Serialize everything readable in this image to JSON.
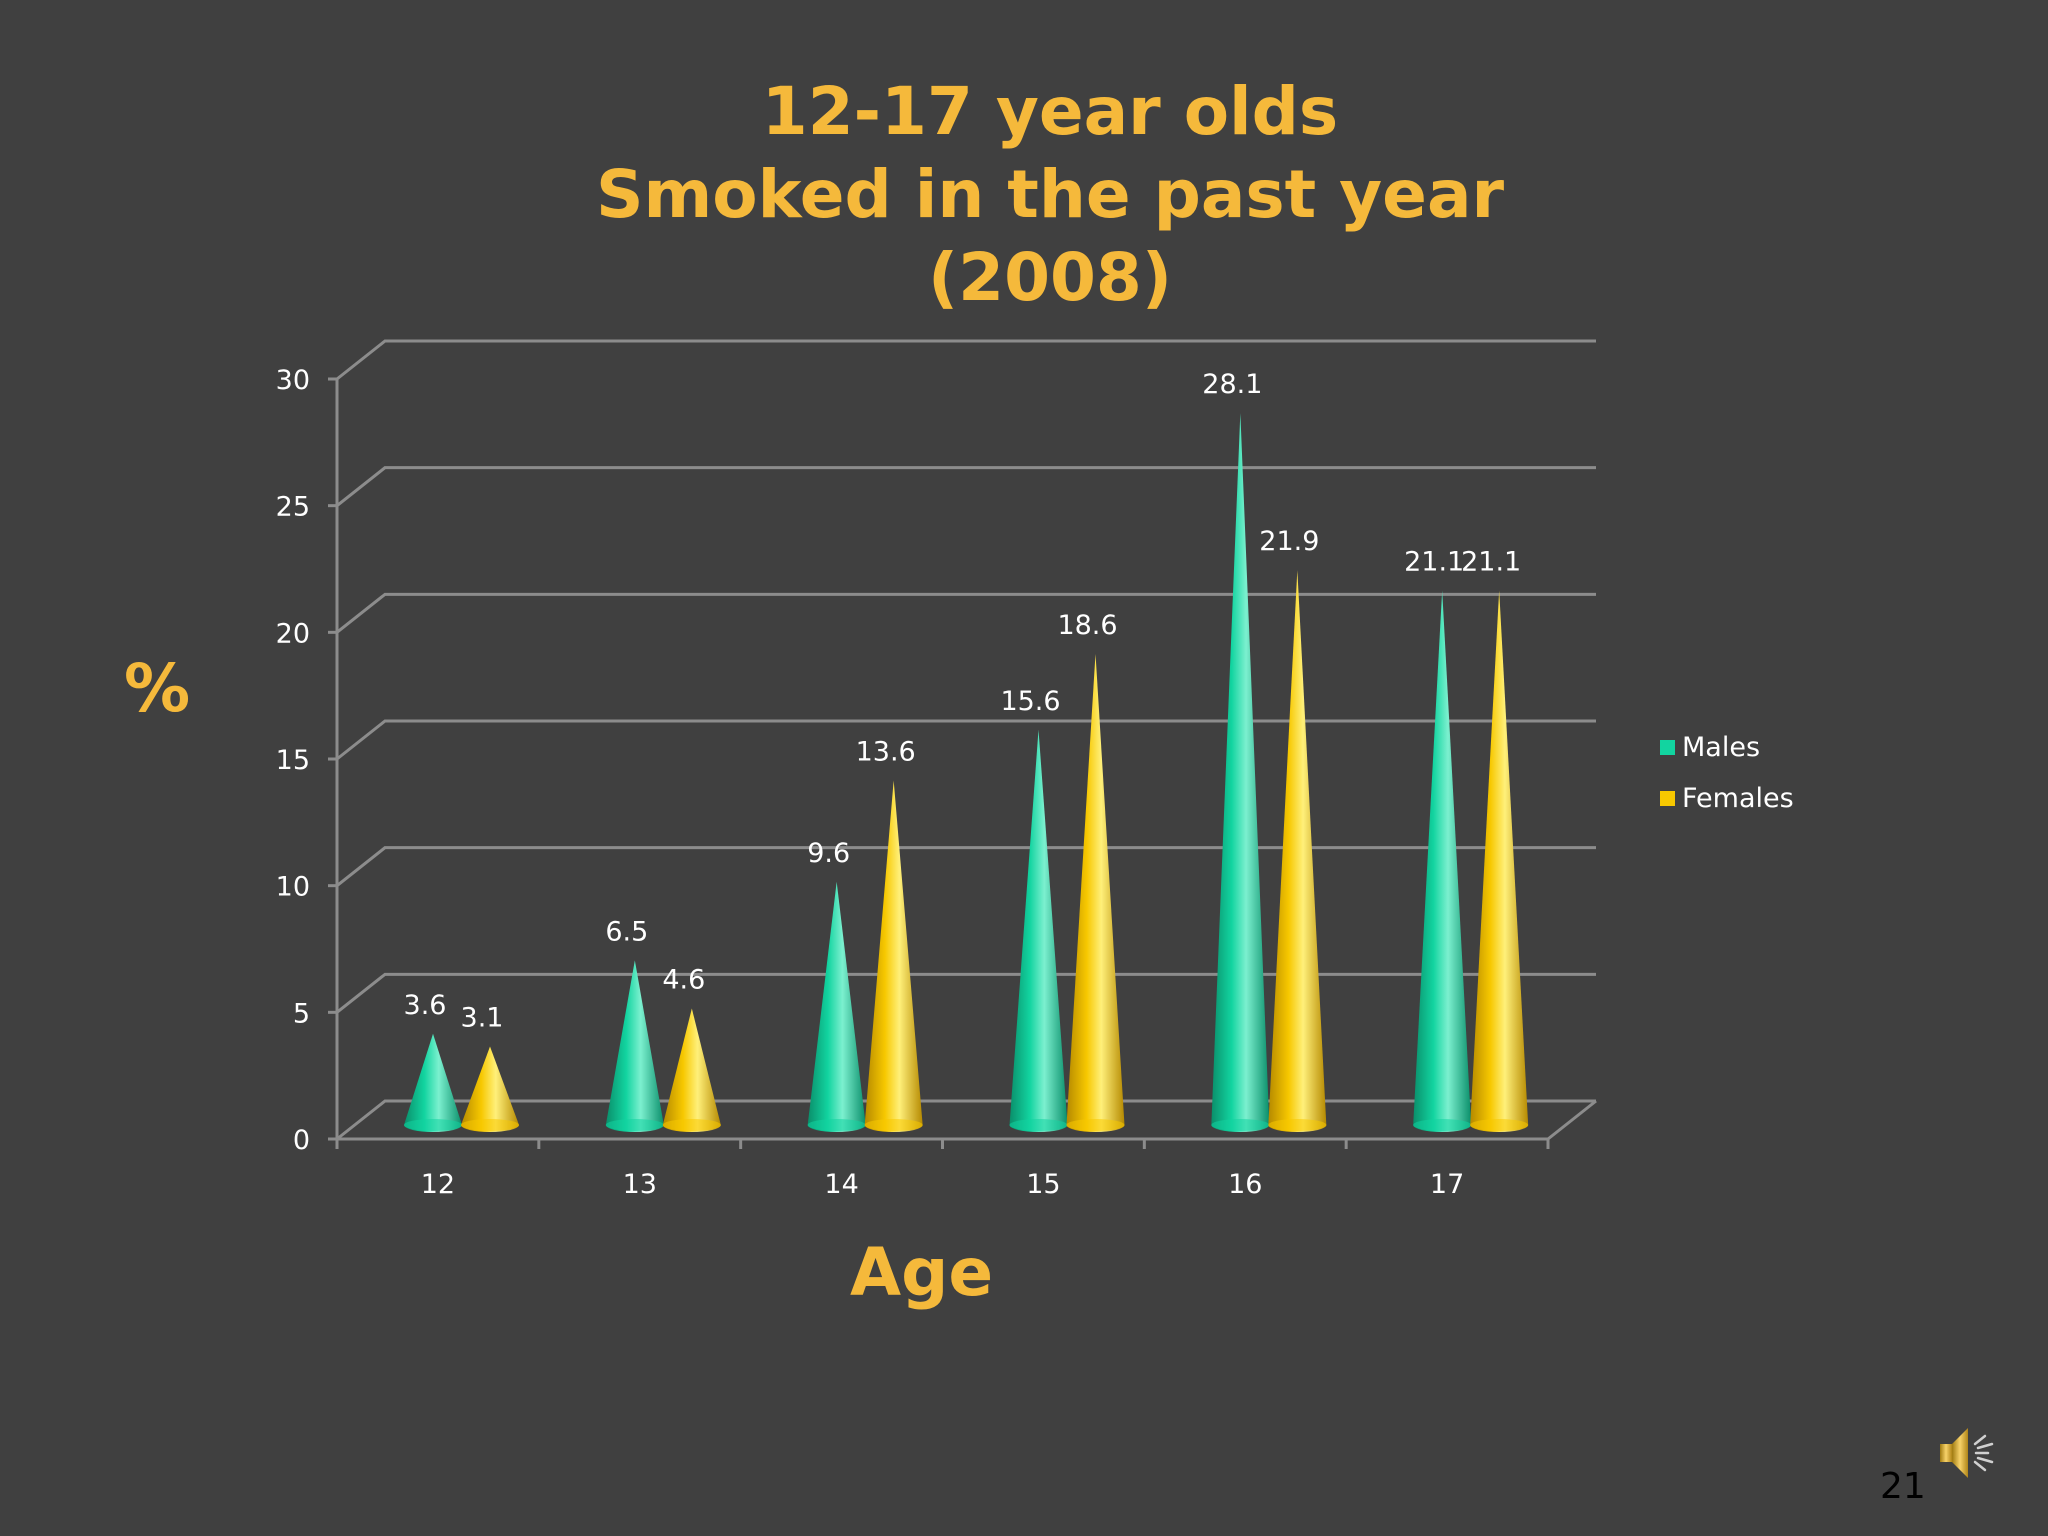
{
  "slide": {
    "title_lines": [
      "12-17 year olds",
      "Smoked in the past year",
      "(2008)"
    ],
    "page_number": "21",
    "icons": [
      "speaker-icon"
    ]
  },
  "colors": {
    "background": "#404040",
    "title": "#f5b93b",
    "males": "#12d4a0",
    "females": "#f7c800",
    "grid": "#8c8c8c",
    "text": "#ffffff"
  },
  "chart_data": {
    "type": "bar",
    "style": "3d-cone",
    "title": "12-17 year olds Smoked in the past year (2008)",
    "xlabel": "Age",
    "ylabel": "%",
    "categories": [
      "12",
      "13",
      "14",
      "15",
      "16",
      "17"
    ],
    "series": [
      {
        "name": "Males",
        "values": [
          3.6,
          6.5,
          9.6,
          15.6,
          28.1,
          21.1
        ]
      },
      {
        "name": "Females",
        "values": [
          3.1,
          4.6,
          13.6,
          18.6,
          21.9,
          21.1
        ]
      }
    ],
    "ylim": [
      0,
      30
    ],
    "yticks": [
      "0",
      "5",
      "10",
      "15",
      "20",
      "25",
      "30"
    ],
    "grid": true,
    "legend": "right"
  }
}
